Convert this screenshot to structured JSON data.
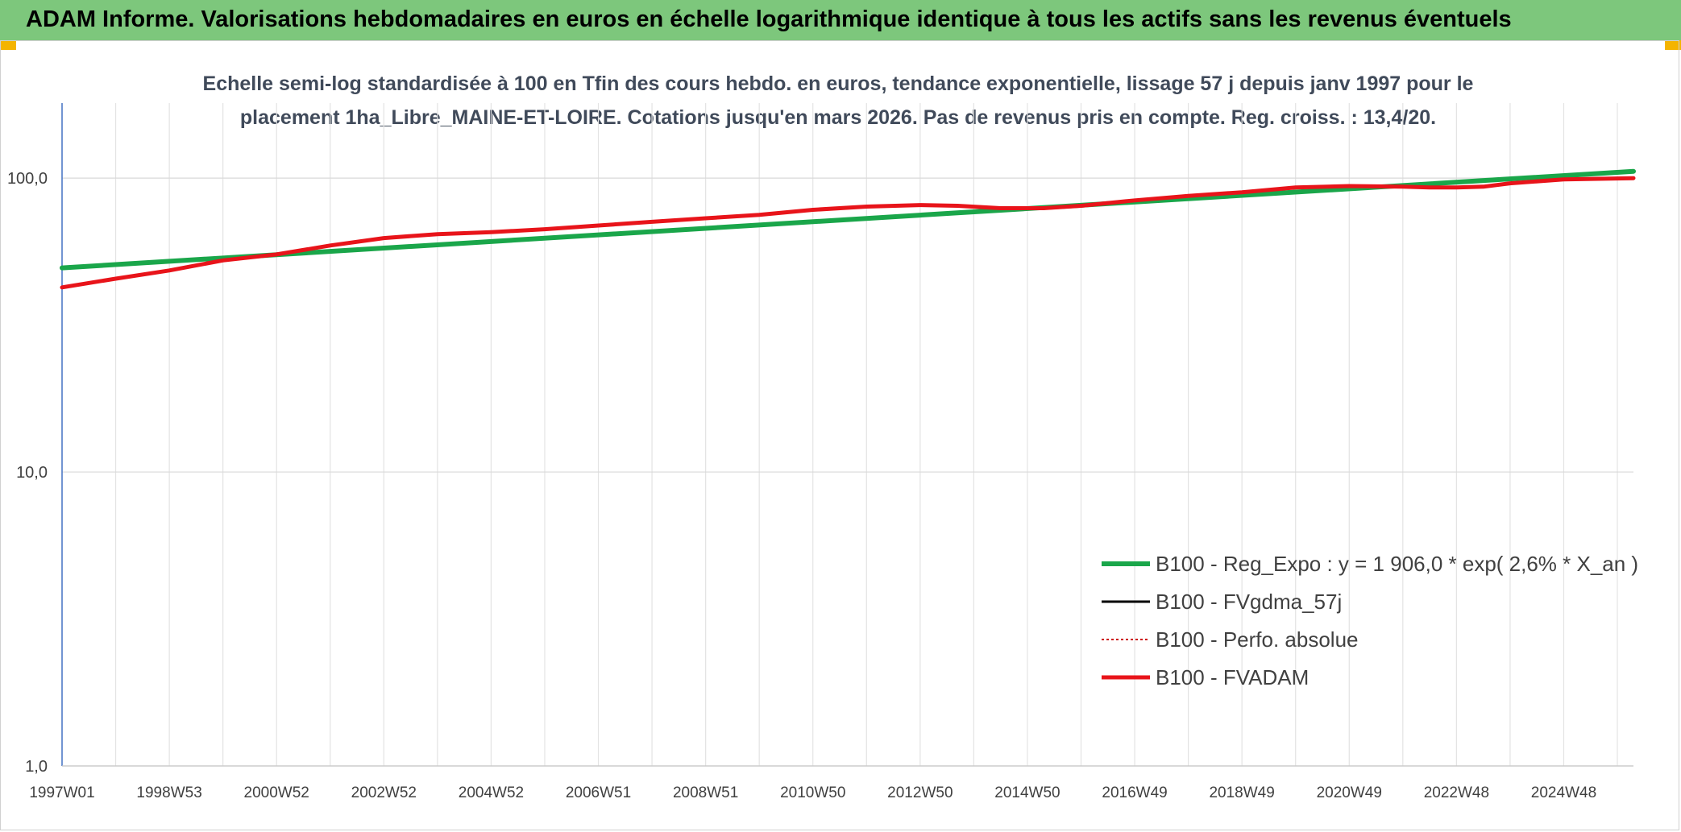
{
  "header": {
    "title": "ADAM Informe. Valorisations hebdomadaires en euros en échelle logarithmique identique à tous les actifs sans les revenus éventuels"
  },
  "colors": {
    "header_bg": "#7dc77c",
    "reg_expo": "#1aa64a",
    "fvgdma": "#000000",
    "perfo": "#cc0000",
    "fvadam": "#e8141a"
  },
  "chart_data": {
    "type": "line",
    "scale": "log",
    "subtitle_line1": "Echelle semi-log standardisée à 100 en Tfin des cours hebdo. en euros, tendance exponentielle, lissage 57 j depuis janv 1997 pour le",
    "subtitle_line2": "placement 1ha_Libre_MAINE-ET-LOIRE. Cotations jusqu'en mars 2026. Pas de revenus pris en compte. Reg. croiss. : 13,4/20.",
    "ylim": [
      1,
      180
    ],
    "y_ticks": [
      {
        "value": 1,
        "label": "1,0"
      },
      {
        "value": 10,
        "label": "10,0"
      },
      {
        "value": 100,
        "label": "100,0"
      }
    ],
    "x_range": [
      1997.0,
      2026.3
    ],
    "x_ticks": [
      {
        "value": 1997.0,
        "label": "1997W01"
      },
      {
        "value": 1999.0,
        "label": "1998W53"
      },
      {
        "value": 2001.0,
        "label": "2000W52"
      },
      {
        "value": 2003.0,
        "label": "2002W52"
      },
      {
        "value": 2005.0,
        "label": "2004W52"
      },
      {
        "value": 2007.0,
        "label": "2006W51"
      },
      {
        "value": 2009.0,
        "label": "2008W51"
      },
      {
        "value": 2011.0,
        "label": "2010W50"
      },
      {
        "value": 2013.0,
        "label": "2012W50"
      },
      {
        "value": 2015.0,
        "label": "2014W50"
      },
      {
        "value": 2017.0,
        "label": "2016W49"
      },
      {
        "value": 2019.0,
        "label": "2018W49"
      },
      {
        "value": 2021.0,
        "label": "2020W49"
      },
      {
        "value": 2023.0,
        "label": "2022W48"
      },
      {
        "value": 2025.0,
        "label": "2024W48"
      }
    ],
    "legend_position": "center-right",
    "series": [
      {
        "name": "B100 - Reg_Expo : y = 1 906,0 * exp( 2,6% *  X_an )",
        "key": "reg_expo",
        "x": [
          1997.0,
          2026.3
        ],
        "y": [
          49.5,
          105.5
        ]
      },
      {
        "name": "B100 - FVgdma_57j",
        "key": "fvgdma",
        "x": [],
        "y": []
      },
      {
        "name": "B100 - Perfo. absolue",
        "key": "perfo",
        "x": [],
        "y": []
      },
      {
        "name": "B100 - FVADAM",
        "key": "fvadam",
        "x": [
          1997.0,
          1998.0,
          1999.0,
          2000.0,
          2001.0,
          2002.0,
          2003.0,
          2004.0,
          2005.0,
          2006.0,
          2007.0,
          2008.0,
          2009.0,
          2010.0,
          2011.0,
          2012.0,
          2013.0,
          2013.7,
          2014.5,
          2015.3,
          2016.0,
          2017.0,
          2018.0,
          2019.0,
          2020.0,
          2021.0,
          2022.0,
          2022.5,
          2023.0,
          2023.5,
          2024.0,
          2025.0,
          2026.3
        ],
        "y": [
          42.5,
          45.5,
          48.5,
          52.5,
          55.0,
          59.0,
          62.5,
          64.5,
          65.5,
          67.0,
          69.0,
          71.0,
          73.0,
          75.0,
          78.0,
          80.0,
          81.0,
          80.5,
          79.0,
          79.0,
          80.5,
          84.0,
          87.0,
          89.5,
          93.0,
          94.0,
          93.5,
          93.0,
          93.0,
          93.5,
          96.0,
          99.0,
          100.0
        ]
      }
    ]
  }
}
